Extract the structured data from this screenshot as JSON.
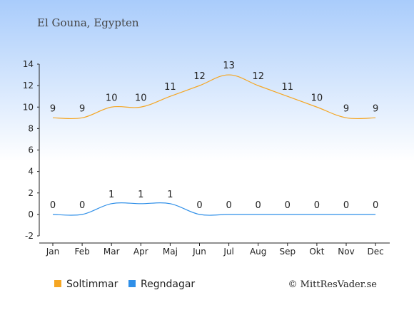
{
  "location": "El Gouna, Egypten",
  "credit": "© MittResVader.se",
  "colors": {
    "background_top": "#a9ccfb",
    "background_bottom": "#ffffff",
    "sun_series": "#f5a623",
    "rain_series": "#2f8fe8",
    "axis": "#222222"
  },
  "chart_data": {
    "type": "line",
    "categories": [
      "Jan",
      "Feb",
      "Mar",
      "Apr",
      "Maj",
      "Jun",
      "Jul",
      "Aug",
      "Sep",
      "Okt",
      "Nov",
      "Dec"
    ],
    "series": [
      {
        "name": "Soltimmar",
        "values": [
          9,
          9,
          10,
          10,
          11,
          12,
          13,
          12,
          11,
          10,
          9,
          9
        ]
      },
      {
        "name": "Regndagar",
        "values": [
          0,
          0,
          1,
          1,
          1,
          0,
          0,
          0,
          0,
          0,
          0,
          0
        ]
      }
    ],
    "ylim": [
      -2,
      14
    ],
    "yticks": [
      -2,
      0,
      2,
      4,
      6,
      8,
      10,
      12,
      14
    ],
    "grid": false,
    "legend": "bottom-left"
  }
}
